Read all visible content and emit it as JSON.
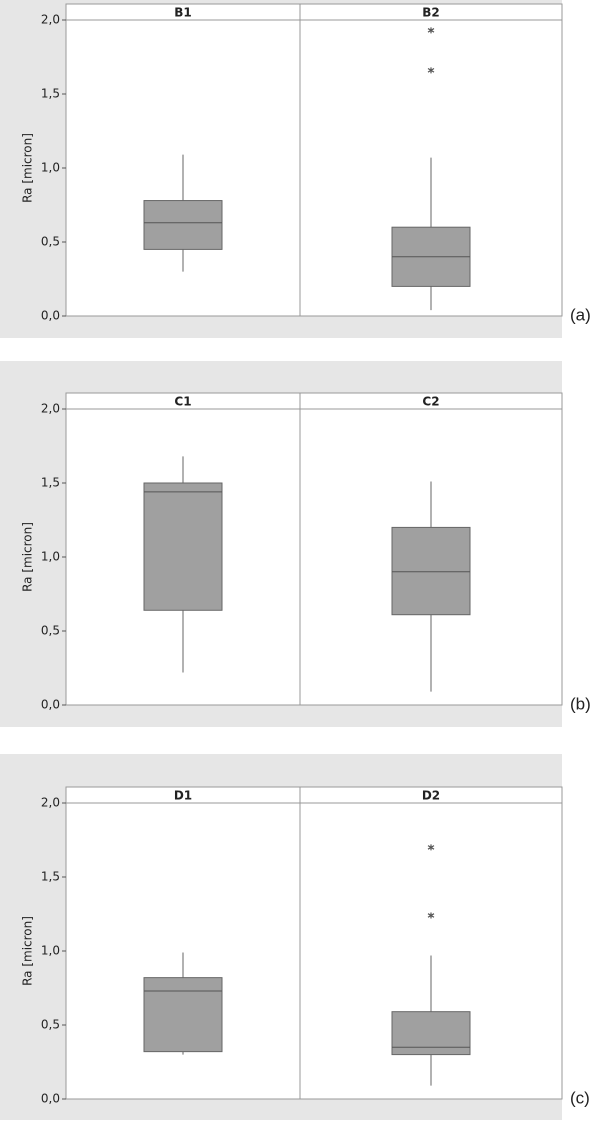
{
  "chart_data": [
    {
      "type": "box",
      "ylabel": "Ra [micron]",
      "panel_label": "(a)",
      "categories": [
        "B1",
        "B2"
      ],
      "boxes": [
        {
          "whislo": 0.3,
          "q1": 0.45,
          "med": 0.63,
          "q3": 0.78,
          "whishi": 1.09,
          "fliers": []
        },
        {
          "whislo": 0.04,
          "q1": 0.2,
          "med": 0.4,
          "q3": 0.6,
          "whishi": 1.07,
          "fliers": [
            1.66,
            1.93
          ]
        }
      ],
      "color": "#a0a0a0",
      "ylim": [
        0,
        2.0
      ],
      "yticks": [
        {
          "value": 0,
          "label": "0,0"
        },
        {
          "value": 0.5,
          "label": "0,5"
        },
        {
          "value": 1.0,
          "label": "1,0"
        },
        {
          "value": 1.5,
          "label": "1,5"
        },
        {
          "value": 2.0,
          "label": "2,0"
        }
      ]
    },
    {
      "type": "box",
      "ylabel": "Ra [micron]",
      "panel_label": "(b)",
      "categories": [
        "C1",
        "C2"
      ],
      "boxes": [
        {
          "whislo": 0.22,
          "q1": 0.64,
          "med": 1.44,
          "q3": 1.5,
          "whishi": 1.68,
          "fliers": []
        },
        {
          "whislo": 0.09,
          "q1": 0.61,
          "med": 0.9,
          "q3": 1.2,
          "whishi": 1.51,
          "fliers": []
        }
      ],
      "color": "#a0a0a0",
      "ylim": [
        0,
        2.0
      ],
      "yticks": [
        {
          "value": 0,
          "label": "0,0"
        },
        {
          "value": 0.5,
          "label": "0,5"
        },
        {
          "value": 1.0,
          "label": "1,0"
        },
        {
          "value": 1.5,
          "label": "1,5"
        },
        {
          "value": 2.0,
          "label": "2,0"
        }
      ]
    },
    {
      "type": "box",
      "ylabel": "Ra [micron]",
      "panel_label": "(c)",
      "categories": [
        "D1",
        "D2"
      ],
      "boxes": [
        {
          "whislo": 0.3,
          "q1": 0.32,
          "med": 0.73,
          "q3": 0.82,
          "whishi": 0.99,
          "fliers": []
        },
        {
          "whislo": 0.09,
          "q1": 0.3,
          "med": 0.35,
          "q3": 0.59,
          "whishi": 0.97,
          "fliers": [
            1.24,
            1.7
          ]
        }
      ],
      "color": "#a0a0a0",
      "ylim": [
        0,
        2.0
      ],
      "yticks": [
        {
          "value": 0,
          "label": "0,0"
        },
        {
          "value": 0.5,
          "label": "0,5"
        },
        {
          "value": 1.0,
          "label": "1,0"
        },
        {
          "value": 1.5,
          "label": "1,5"
        },
        {
          "value": 2.0,
          "label": "2,0"
        }
      ]
    }
  ]
}
